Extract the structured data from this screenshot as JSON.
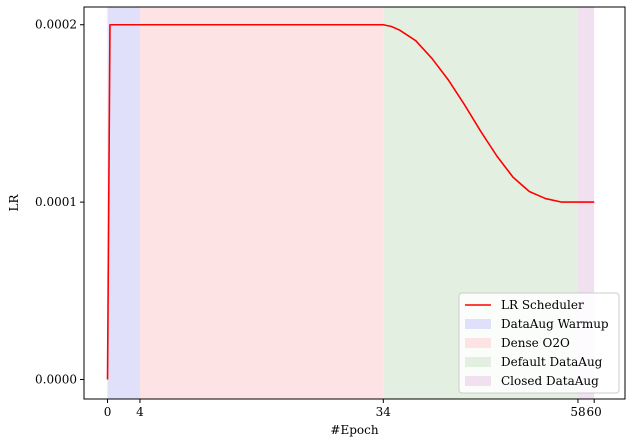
{
  "chart_data": {
    "type": "line",
    "xlabel": "#Epoch",
    "ylabel": "LR",
    "xlim": [
      -2.9,
      63.8
    ],
    "ylim": [
      -1.1e-05,
      0.00021
    ],
    "x_ticks": [
      {
        "value": 0,
        "label": "0"
      },
      {
        "value": 4,
        "label": "4"
      },
      {
        "value": 34,
        "label": "34"
      },
      {
        "value": 58,
        "label": "58"
      },
      {
        "value": 60,
        "label": "60"
      }
    ],
    "y_ticks": [
      {
        "value": 0.0,
        "label": "0.0000"
      },
      {
        "value": 0.0001,
        "label": "0.0001"
      },
      {
        "value": 0.0002,
        "label": "0.0002"
      }
    ],
    "series": [
      {
        "name": "LR Scheduler",
        "color": "#ff0000",
        "x": [
          0,
          0.3,
          4,
          34,
          35,
          36,
          38,
          40,
          42,
          44,
          46,
          48,
          50,
          52,
          54,
          56,
          58,
          60
        ],
        "y": [
          0.0,
          0.0002,
          0.0002,
          0.0002,
          0.000199,
          0.000197,
          0.000191,
          0.000181,
          0.000169,
          0.000155,
          0.00014,
          0.000126,
          0.000114,
          0.000106,
          0.000102,
          0.0001,
          0.0001,
          0.0001
        ]
      }
    ],
    "regions": [
      {
        "name": "DataAug Warmup",
        "x0": 0,
        "x1": 4,
        "color": "#e0e0fa"
      },
      {
        "name": "Dense O2O",
        "x0": 4,
        "x1": 34,
        "color": "#fde3e3"
      },
      {
        "name": "Default DataAug",
        "x0": 34,
        "x1": 58,
        "color": "#e3f0e1"
      },
      {
        "name": "Closed DataAug",
        "x0": 58,
        "x1": 60,
        "color": "#f0e0f0"
      }
    ],
    "legend": {
      "placement": "lower-right",
      "entries": [
        "LR Scheduler",
        "DataAug Warmup",
        "Dense O2O",
        "Default DataAug",
        "Closed DataAug"
      ]
    },
    "grid": false
  }
}
